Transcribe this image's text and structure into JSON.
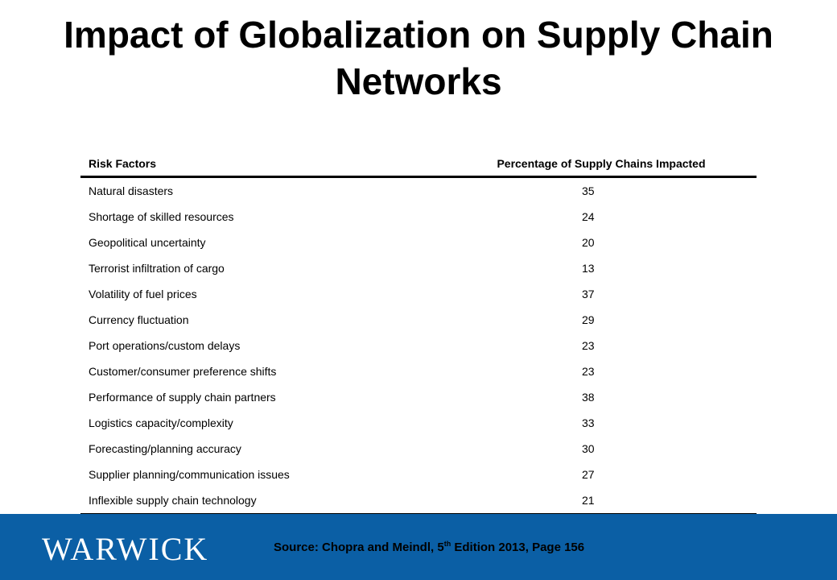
{
  "slide": {
    "title": "Impact of Globalization on Supply Chain Networks"
  },
  "table": {
    "headers": [
      "Risk Factors",
      "Percentage of Supply Chains Impacted"
    ],
    "rows": [
      {
        "factor": "Natural disasters",
        "value": "35"
      },
      {
        "factor": "Shortage of skilled resources",
        "value": "24"
      },
      {
        "factor": "Geopolitical uncertainty",
        "value": "20"
      },
      {
        "factor": "Terrorist infiltration of cargo",
        "value": "13"
      },
      {
        "factor": "Volatility of fuel prices",
        "value": "37"
      },
      {
        "factor": "Currency fluctuation",
        "value": "29"
      },
      {
        "factor": "Port operations/custom delays",
        "value": "23"
      },
      {
        "factor": "Customer/consumer preference shifts",
        "value": "23"
      },
      {
        "factor": "Performance of supply chain partners",
        "value": "38"
      },
      {
        "factor": "Logistics capacity/complexity",
        "value": "33"
      },
      {
        "factor": "Forecasting/planning accuracy",
        "value": "30"
      },
      {
        "factor": "Supplier planning/communication issues",
        "value": "27"
      },
      {
        "factor": "Inflexible supply chain technology",
        "value": "21"
      }
    ]
  },
  "footer": {
    "logo_text": "WARWICK",
    "source_prefix": "Source: Chopra and Meindl, 5",
    "source_sup": "th",
    "source_suffix": " Edition 2013, Page 156",
    "background": "#0b5fa5"
  }
}
